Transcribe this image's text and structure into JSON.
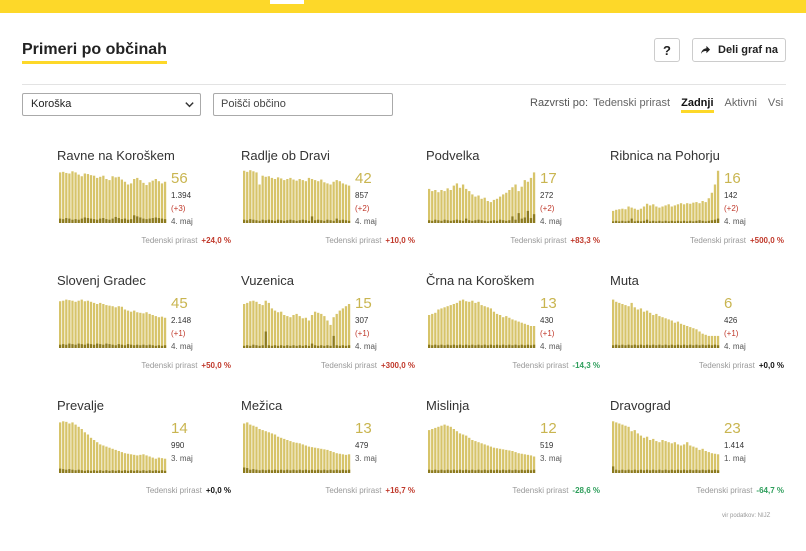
{
  "header": {
    "title": "Primeri po občinah",
    "help_label": "?",
    "share_label": "Deli graf na"
  },
  "controls": {
    "region": "Koroška",
    "search_placeholder": "Poišči občino",
    "sort_label": "Razvrsti po:",
    "sort_options": [
      "Tedenski prirast",
      "Zadnji",
      "Aktivni",
      "Vsi"
    ],
    "sort_active": "Zadnji"
  },
  "growth_label": "Tedenski prirast",
  "source": "vir podatkov: NIJZ",
  "colors": {
    "bar": "#d7c46a",
    "bar_recent": "#b29c2a",
    "dark": "#8c7a1e",
    "accent": "#fdd829"
  },
  "chart_data": [
    {
      "type": "bar",
      "name": "Ravne na Koroškem",
      "active": "56",
      "total": "1.394",
      "delta": "(+3)",
      "date": "4. maj",
      "growth": "+24,0 %",
      "trend": "up",
      "values": [
        92,
        93,
        91,
        90,
        94,
        92,
        88,
        85,
        90,
        89,
        87,
        86,
        82,
        84,
        86,
        80,
        78,
        85,
        83,
        84,
        79,
        75,
        70,
        72,
        80,
        82,
        78,
        73,
        69,
        74,
        77,
        80,
        76,
        72,
        75
      ],
      "dark": [
        8,
        7,
        9,
        8,
        6,
        7,
        6,
        8,
        10,
        9,
        8,
        7,
        6,
        8,
        9,
        7,
        6,
        8,
        11,
        9,
        7,
        8,
        6,
        7,
        14,
        12,
        10,
        8,
        7,
        8,
        9,
        10,
        9,
        8,
        7
      ]
    },
    {
      "type": "bar",
      "name": "Radlje ob Dravi",
      "active": "42",
      "total": "857",
      "delta": "(+2)",
      "date": "4. maj",
      "growth": "+10,0 %",
      "trend": "up",
      "values": [
        95,
        93,
        96,
        94,
        92,
        70,
        86,
        84,
        85,
        82,
        80,
        83,
        81,
        78,
        80,
        82,
        79,
        77,
        80,
        78,
        76,
        82,
        80,
        78,
        76,
        79,
        74,
        72,
        70,
        75,
        78,
        76,
        72,
        70,
        68
      ],
      "dark": [
        6,
        5,
        7,
        6,
        5,
        4,
        6,
        5,
        6,
        5,
        4,
        6,
        5,
        4,
        5,
        6,
        5,
        4,
        5,
        6,
        5,
        4,
        12,
        5,
        6,
        5,
        4,
        6,
        5,
        4,
        8,
        5,
        6,
        5,
        4
      ]
    },
    {
      "type": "bar",
      "name": "Podvelka",
      "active": "17",
      "total": "272",
      "delta": "(+2)",
      "date": "4. maj",
      "growth": "+83,3 %",
      "trend": "up",
      "values": [
        62,
        58,
        60,
        56,
        60,
        58,
        63,
        60,
        68,
        72,
        64,
        70,
        62,
        58,
        52,
        48,
        50,
        44,
        46,
        40,
        38,
        42,
        44,
        48,
        52,
        55,
        60,
        65,
        70,
        58,
        66,
        78,
        75,
        82,
        92
      ],
      "dark": [
        5,
        4,
        6,
        5,
        4,
        6,
        5,
        4,
        5,
        6,
        5,
        4,
        8,
        5,
        4,
        5,
        6,
        5,
        4,
        3,
        4,
        5,
        4,
        6,
        5,
        4,
        5,
        12,
        6,
        18,
        8,
        10,
        22,
        9,
        16
      ]
    },
    {
      "type": "bar",
      "name": "Ribnica na Pohorju",
      "active": "16",
      "total": "142",
      "delta": "(+2)",
      "date": "4. maj",
      "growth": "+500,0 %",
      "trend": "up",
      "values": [
        22,
        24,
        25,
        26,
        25,
        30,
        28,
        26,
        24,
        26,
        30,
        35,
        32,
        34,
        30,
        28,
        30,
        32,
        34,
        30,
        32,
        34,
        36,
        34,
        36,
        35,
        37,
        38,
        36,
        40,
        38,
        45,
        55,
        70,
        95
      ],
      "dark": [
        3,
        4,
        3,
        4,
        3,
        4,
        8,
        3,
        4,
        3,
        4,
        6,
        3,
        4,
        3,
        4,
        3,
        4,
        3,
        4,
        3,
        4,
        3,
        4,
        3,
        4,
        3,
        4,
        5,
        4,
        3,
        4,
        5,
        6,
        8
      ]
    },
    {
      "type": "bar",
      "name": "Slovenj Gradec",
      "active": "45",
      "total": "2.148",
      "delta": "(+1)",
      "date": "4. maj",
      "growth": "+50,0 %",
      "trend": "up",
      "values": [
        85,
        86,
        88,
        87,
        86,
        84,
        86,
        88,
        85,
        86,
        84,
        82,
        80,
        82,
        80,
        78,
        77,
        76,
        74,
        76,
        75,
        70,
        68,
        66,
        68,
        65,
        64,
        63,
        65,
        62,
        60,
        58,
        56,
        57,
        55
      ],
      "dark": [
        6,
        7,
        6,
        8,
        7,
        6,
        8,
        7,
        6,
        8,
        7,
        6,
        8,
        7,
        6,
        8,
        7,
        6,
        5,
        7,
        6,
        5,
        7,
        6,
        5,
        6,
        5,
        6,
        5,
        6,
        5,
        4,
        5,
        4,
        5
      ]
    },
    {
      "type": "bar",
      "name": "Vuzenica",
      "active": "15",
      "total": "307",
      "delta": "(+1)",
      "date": "4. maj",
      "growth": "+300,0 %",
      "trend": "up",
      "values": [
        80,
        82,
        85,
        86,
        84,
        80,
        78,
        86,
        82,
        72,
        68,
        65,
        66,
        60,
        58,
        56,
        60,
        62,
        58,
        54,
        55,
        50,
        60,
        66,
        64,
        62,
        58,
        50,
        42,
        56,
        62,
        68,
        72,
        76,
        80
      ],
      "dark": [
        4,
        5,
        4,
        6,
        5,
        4,
        5,
        30,
        5,
        4,
        5,
        4,
        5,
        4,
        5,
        4,
        5,
        4,
        5,
        4,
        5,
        4,
        8,
        5,
        4,
        5,
        4,
        5,
        4,
        22,
        5,
        4,
        5,
        4,
        5
      ]
    },
    {
      "type": "bar",
      "name": "Črna na Koroškem",
      "active": "13",
      "total": "430",
      "delta": "(+1)",
      "date": "4. maj",
      "growth": "-14,3 %",
      "trend": "down",
      "values": [
        60,
        62,
        64,
        70,
        72,
        74,
        76,
        78,
        80,
        82,
        86,
        88,
        85,
        84,
        86,
        82,
        84,
        78,
        76,
        74,
        72,
        66,
        62,
        60,
        56,
        58,
        55,
        52,
        50,
        48,
        46,
        44,
        42,
        40,
        40
      ],
      "dark": [
        6,
        5,
        6,
        5,
        6,
        5,
        6,
        5,
        6,
        5,
        6,
        5,
        6,
        5,
        6,
        5,
        6,
        5,
        6,
        5,
        6,
        5,
        6,
        5,
        6,
        5,
        6,
        5,
        6,
        5,
        6,
        5,
        6,
        5,
        6
      ]
    },
    {
      "type": "bar",
      "name": "Muta",
      "active": "6",
      "total": "426",
      "delta": "(+1)",
      "date": "4. maj",
      "growth": "+0,0 %",
      "trend": "zero",
      "values": [
        88,
        84,
        82,
        80,
        78,
        76,
        82,
        74,
        70,
        72,
        66,
        68,
        64,
        60,
        62,
        58,
        56,
        54,
        52,
        50,
        46,
        48,
        44,
        42,
        40,
        38,
        36,
        34,
        30,
        26,
        24,
        22,
        22,
        22,
        22
      ],
      "dark": [
        5,
        6,
        5,
        6,
        5,
        6,
        5,
        6,
        5,
        6,
        5,
        6,
        5,
        6,
        5,
        6,
        5,
        6,
        5,
        6,
        5,
        6,
        5,
        6,
        5,
        6,
        5,
        6,
        5,
        6,
        5,
        6,
        5,
        6,
        5
      ]
    },
    {
      "type": "bar",
      "name": "Prevalje",
      "active": "14",
      "total": "990",
      "delta": "",
      "date": "3. maj",
      "growth": "+0,0 %",
      "trend": "zero",
      "values": [
        92,
        94,
        93,
        90,
        92,
        88,
        84,
        80,
        74,
        70,
        64,
        60,
        56,
        52,
        50,
        48,
        46,
        44,
        42,
        40,
        38,
        36,
        35,
        34,
        33,
        32,
        33,
        34,
        32,
        30,
        28,
        26,
        28,
        27,
        26
      ],
      "dark": [
        8,
        7,
        6,
        7,
        6,
        5,
        6,
        5,
        4,
        5,
        4,
        5,
        4,
        5,
        4,
        5,
        4,
        5,
        4,
        5,
        4,
        5,
        4,
        5,
        4,
        5,
        4,
        5,
        4,
        5,
        4,
        5,
        4,
        5,
        4
      ]
    },
    {
      "type": "bar",
      "name": "Mežica",
      "active": "13",
      "total": "479",
      "delta": "",
      "date": "3. maj",
      "growth": "+16,7 %",
      "trend": "up",
      "values": [
        90,
        92,
        88,
        86,
        84,
        80,
        78,
        76,
        74,
        72,
        70,
        66,
        64,
        62,
        60,
        58,
        56,
        55,
        54,
        52,
        50,
        48,
        47,
        46,
        45,
        44,
        43,
        42,
        40,
        38,
        36,
        35,
        34,
        33,
        34
      ],
      "dark": [
        10,
        9,
        6,
        7,
        6,
        5,
        6,
        5,
        6,
        5,
        6,
        5,
        6,
        5,
        6,
        5,
        6,
        5,
        6,
        5,
        6,
        5,
        6,
        5,
        6,
        5,
        6,
        5,
        6,
        5,
        6,
        5,
        6,
        5,
        6
      ]
    },
    {
      "type": "bar",
      "name": "Mislinja",
      "active": "12",
      "total": "519",
      "delta": "",
      "date": "3. maj",
      "growth": "-28,6 %",
      "trend": "down",
      "values": [
        78,
        80,
        82,
        84,
        86,
        88,
        86,
        84,
        80,
        76,
        72,
        70,
        68,
        64,
        60,
        58,
        56,
        54,
        52,
        50,
        48,
        46,
        45,
        44,
        43,
        42,
        41,
        40,
        38,
        36,
        35,
        34,
        33,
        32,
        30
      ],
      "dark": [
        6,
        5,
        6,
        5,
        6,
        5,
        6,
        5,
        6,
        5,
        6,
        5,
        6,
        5,
        6,
        5,
        6,
        5,
        6,
        5,
        6,
        5,
        6,
        5,
        6,
        5,
        6,
        5,
        6,
        5,
        6,
        5,
        6,
        5,
        6
      ]
    },
    {
      "type": "bar",
      "name": "Dravograd",
      "active": "23",
      "total": "1.414",
      "delta": "",
      "date": "1. maj",
      "growth": "-64,7 %",
      "trend": "down",
      "values": [
        94,
        92,
        90,
        88,
        86,
        84,
        76,
        78,
        72,
        68,
        64,
        66,
        60,
        62,
        58,
        56,
        60,
        58,
        56,
        54,
        56,
        52,
        50,
        52,
        56,
        50,
        48,
        46,
        42,
        44,
        40,
        38,
        36,
        35,
        34
      ],
      "dark": [
        12,
        6,
        5,
        6,
        5,
        6,
        5,
        6,
        5,
        6,
        5,
        6,
        5,
        6,
        5,
        6,
        5,
        6,
        5,
        6,
        5,
        6,
        5,
        6,
        5,
        6,
        5,
        6,
        5,
        6,
        5,
        6,
        5,
        6,
        5
      ]
    }
  ]
}
